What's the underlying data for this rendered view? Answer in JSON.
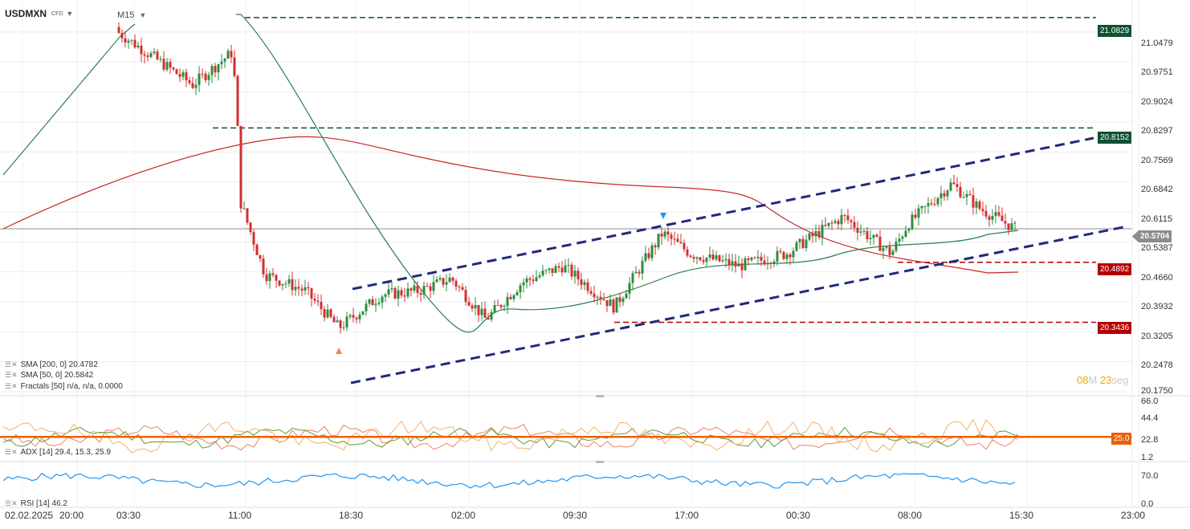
{
  "header": {
    "symbol": "USDMXN",
    "instrument_type": "CFD",
    "timeframe": "M15"
  },
  "legend": {
    "sma200": "SMA [200, 0] 20.4782",
    "sma50": "SMA [50, 0] 20.5842",
    "fractals": "Fractals [50] n/a, n/a, 0.0000",
    "adx": "ADX [14] 29.4, 15.3, 25.9",
    "rsi": "RSI [14] 46.2"
  },
  "countdown": {
    "minutes": "08",
    "minutes_unit": "M",
    "seconds": "23",
    "seconds_unit": "seg"
  },
  "price_axis": [
    "21.0479",
    "20.9751",
    "20.9024",
    "20.8297",
    "20.7569",
    "20.6842",
    "20.6115",
    "20.5387",
    "20.4660",
    "20.3932",
    "20.3205",
    "20.2478",
    "20.1750"
  ],
  "adx_axis": [
    "66.0",
    "44.4",
    "22.8",
    "1.2"
  ],
  "rsi_axis": [
    "70.0",
    "0.0"
  ],
  "time_axis": [
    "02.02.2025",
    "20:00",
    "03:30",
    "11:00",
    "18:30",
    "02:00",
    "09:30",
    "17:00",
    "00:30",
    "08:00",
    "15:30",
    "23:00"
  ],
  "price_tags": {
    "level_1": "21.0829",
    "level_2": "20.8152",
    "current": "20.5704",
    "level_3": "20.4892",
    "level_4": "20.3436",
    "adx_level": "25.0"
  },
  "colors": {
    "bull": "#2e8b3e",
    "bear": "#d32f2f",
    "sma50": "#2e7d4f",
    "sma200": "#c62828",
    "channel": "#1f2a7a",
    "resistance": "#0f5132",
    "support": "#b30000",
    "rsi": "#2196f3",
    "adx": "#e8620c"
  },
  "chart_data": {
    "type": "candlestick",
    "symbol": "USDMXN",
    "timeframe": "M15",
    "x_ticks": [
      "02.02.2025 20:00",
      "03:30",
      "11:00",
      "18:30",
      "02:00",
      "09:30",
      "17:00",
      "00:30",
      "08:00",
      "15:30",
      "23:00"
    ],
    "ylim": [
      20.175,
      21.11
    ],
    "close_path": [
      {
        "t": "02.02.2025 20:00",
        "c": 20.96
      },
      {
        "t": "03:30",
        "c": 21.05
      },
      {
        "t": "07:00",
        "c": 20.92
      },
      {
        "t": "11:00",
        "c": 21.0
      },
      {
        "t": "11:15",
        "c": 20.62
      },
      {
        "t": "13:00",
        "c": 20.46
      },
      {
        "t": "16:00",
        "c": 20.42
      },
      {
        "t": "18:30",
        "c": 20.33
      },
      {
        "t": "21:00",
        "c": 20.41
      },
      {
        "t": "00:00",
        "c": 20.42
      },
      {
        "t": "02:00",
        "c": 20.45
      },
      {
        "t": "05:00",
        "c": 20.35
      },
      {
        "t": "07:00",
        "c": 20.44
      },
      {
        "t": "09:30",
        "c": 20.48
      },
      {
        "t": "12:30",
        "c": 20.38
      },
      {
        "t": "15:30",
        "c": 20.56
      },
      {
        "t": "17:00",
        "c": 20.51
      },
      {
        "t": "21:00",
        "c": 20.48
      },
      {
        "t": "00:30",
        "c": 20.51
      },
      {
        "t": "04:00",
        "c": 20.6
      },
      {
        "t": "07:00",
        "c": 20.51
      },
      {
        "t": "08:00",
        "c": 20.58
      },
      {
        "t": "10:30",
        "c": 20.68
      },
      {
        "t": "13:00",
        "c": 20.62
      },
      {
        "t": "15:30",
        "c": 20.57
      }
    ],
    "indicators": [
      {
        "name": "SMA [200, 0]",
        "value": 20.4782
      },
      {
        "name": "SMA [50, 0]",
        "value": 20.5842
      },
      {
        "name": "Fractals [50]",
        "value": "n/a, n/a, 0.0000"
      }
    ],
    "horizontal_levels": [
      21.0829,
      20.8152,
      20.4892,
      20.3436
    ],
    "current_price": 20.5704,
    "channel": {
      "upper": [
        {
          "t": "18:30",
          "y": 20.466
        },
        {
          "t": "15:30",
          "y": 20.815
        }
      ],
      "lower": [
        {
          "t": "18:30",
          "y": 20.175
        },
        {
          "t": "15:30",
          "y": 20.56
        }
      ]
    },
    "adx_panel": {
      "name": "ADX [14]",
      "values": [
        29.4,
        15.3,
        25.9
      ],
      "level": 25.0,
      "ylim": [
        1.2,
        66.0
      ]
    },
    "rsi_panel": {
      "name": "RSI [14]",
      "value": 46.2,
      "ylim": [
        0,
        70
      ]
    }
  }
}
